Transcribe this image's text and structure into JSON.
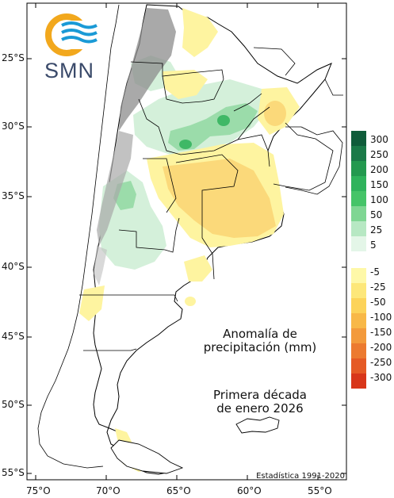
{
  "logo": {
    "text": "SMN",
    "ring_color": "#f2a81d",
    "wave_color": "#1a9ad6"
  },
  "annotation": {
    "title_line1": "Anomalía de",
    "title_line2": "precipitación (mm)",
    "period_line1": "Primera década",
    "period_line2": "de enero 2026"
  },
  "footer": "Estadística 1991-2020",
  "axes": {
    "lat_labels": [
      "25°S",
      "30°S",
      "35°S",
      "40°S",
      "45°S",
      "50°S",
      "55°S"
    ],
    "lon_labels": [
      "75°O",
      "70°O",
      "65°O",
      "60°O",
      "55°O"
    ]
  },
  "legend": {
    "labels": [
      "300",
      "250",
      "200",
      "150",
      "100",
      "50",
      "25",
      "5",
      "-5",
      "-25",
      "-50",
      "-100",
      "-150",
      "-200",
      "-250",
      "-300"
    ],
    "colors": [
      "#0f5c3a",
      "#1a7a48",
      "#23994f",
      "#2fb35c",
      "#45c468",
      "#7fd693",
      "#b7e8c3",
      "#e4f6e8",
      "#fef8a8",
      "#fde77a",
      "#fcd35a",
      "#f8b848",
      "#f39a3c",
      "#ec7a30",
      "#e55a25",
      "#d8361a"
    ]
  },
  "colors": {
    "dry_light": "#fef4a0",
    "dry_mid": "#fbd97a",
    "dry_strong": "#f4b54a",
    "wet_light": "#d4f0da",
    "wet_mid": "#9bdcaa",
    "wet_strong": "#3fb866",
    "terrain": "#8c8c8c",
    "border": "#000000"
  }
}
